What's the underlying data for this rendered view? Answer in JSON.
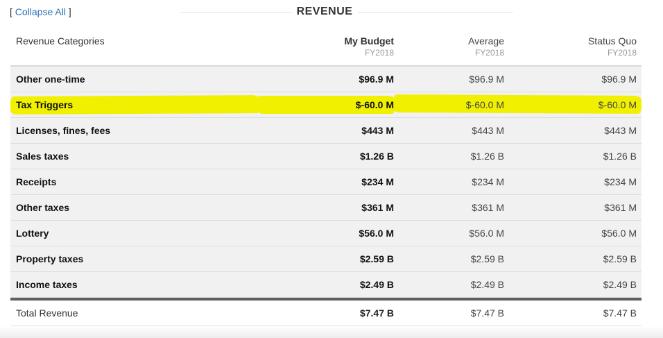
{
  "collapse": {
    "open": "[",
    "label": "Collapse All",
    "close": "]"
  },
  "section_title": "REVENUE",
  "columns": {
    "category": "Revenue Categories",
    "my_budget": {
      "label": "My Budget",
      "year": "FY2018"
    },
    "average": {
      "label": "Average",
      "year": "FY2018"
    },
    "status_quo": {
      "label": "Status Quo",
      "year": "FY2018"
    }
  },
  "rows": [
    {
      "name": "Other one-time",
      "my": "$96.9 M",
      "avg": "$96.9 M",
      "sq": "$96.9 M"
    },
    {
      "name": "Tax Triggers",
      "my": "$-60.0 M",
      "avg": "$-60.0 M",
      "sq": "$-60.0 M"
    },
    {
      "name": "Licenses, fines, fees",
      "my": "$443 M",
      "avg": "$443 M",
      "sq": "$443 M"
    },
    {
      "name": "Sales taxes",
      "my": "$1.26 B",
      "avg": "$1.26 B",
      "sq": "$1.26 B"
    },
    {
      "name": "Receipts",
      "my": "$234 M",
      "avg": "$234 M",
      "sq": "$234 M"
    },
    {
      "name": "Other taxes",
      "my": "$361 M",
      "avg": "$361 M",
      "sq": "$361 M"
    },
    {
      "name": "Lottery",
      "my": "$56.0 M",
      "avg": "$56.0 M",
      "sq": "$56.0 M"
    },
    {
      "name": "Property taxes",
      "my": "$2.59 B",
      "avg": "$2.59 B",
      "sq": "$2.59 B"
    },
    {
      "name": "Income taxes",
      "my": "$2.49 B",
      "avg": "$2.49 B",
      "sq": "$2.49 B"
    }
  ],
  "total": {
    "name": "Total Revenue",
    "my": "$7.47 B",
    "avg": "$7.47 B",
    "sq": "$7.47 B"
  },
  "highlight_color": "#f0f000"
}
